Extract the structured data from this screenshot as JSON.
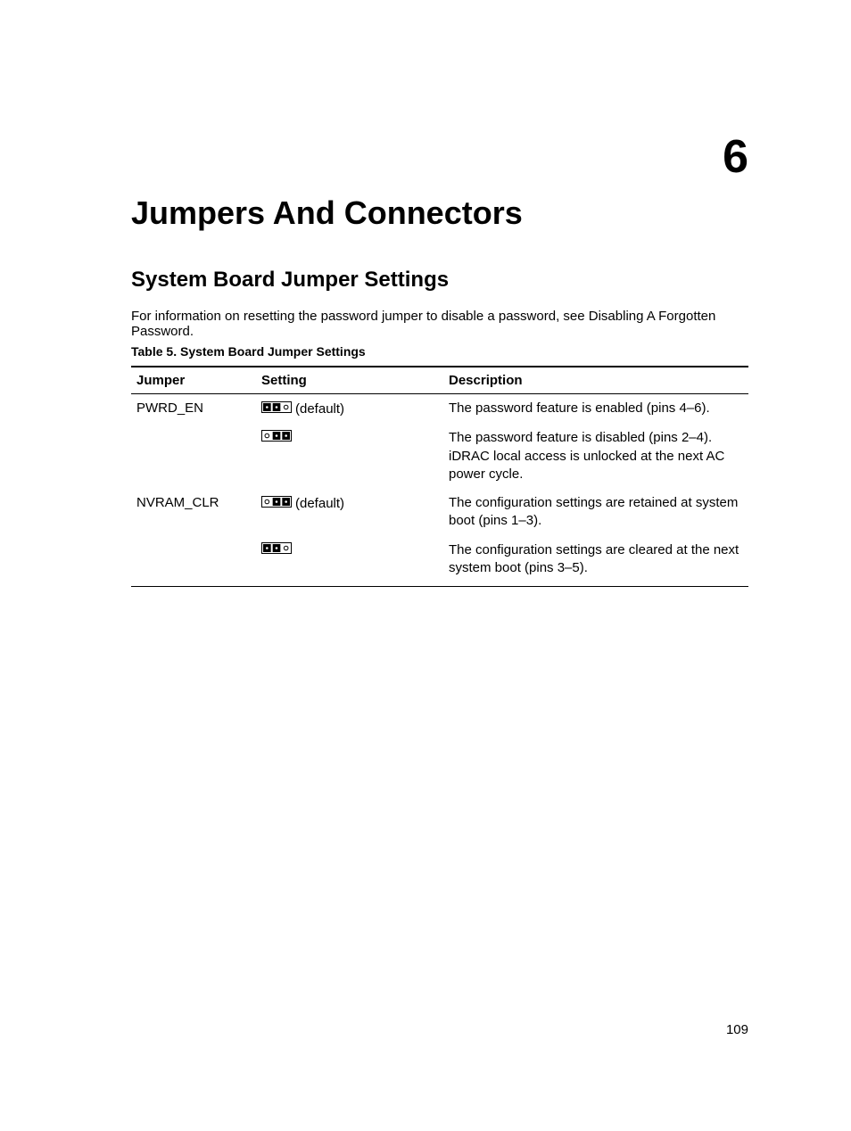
{
  "chapter": {
    "number": "6",
    "title": "Jumpers And Connectors"
  },
  "section": {
    "title": "System Board Jumper Settings",
    "intro": "For information on resetting the password jumper to disable a password, see Disabling A Forgotten Password."
  },
  "table": {
    "caption": "Table 5. System Board Jumper Settings",
    "columns": [
      "Jumper",
      "Setting",
      "Description"
    ],
    "rows": [
      {
        "jumper": "PWRD_EN",
        "setting_icon": "jumper-12-filled",
        "setting_label": "(default)",
        "description": "The password feature is enabled (pins 4–6)."
      },
      {
        "jumper": "",
        "setting_icon": "jumper-23-filled-open1",
        "setting_label": "",
        "description": "The password feature is disabled (pins 2–4). iDRAC local access is unlocked at the next AC power cycle."
      },
      {
        "jumper": "NVRAM_CLR",
        "setting_icon": "jumper-23-filled-open1",
        "setting_label": "(default)",
        "description": "The configuration settings are retained at system boot (pins 1–3)."
      },
      {
        "jumper": "",
        "setting_icon": "jumper-12-filled",
        "setting_label": "",
        "description": "The configuration settings are cleared at the next system boot (pins 3–5)."
      }
    ]
  },
  "page_number": "109",
  "svg": {
    "width": 34,
    "height": 13,
    "stroke": "#000000",
    "filled_fill": "#000000",
    "open_fill": "#ffffff"
  }
}
